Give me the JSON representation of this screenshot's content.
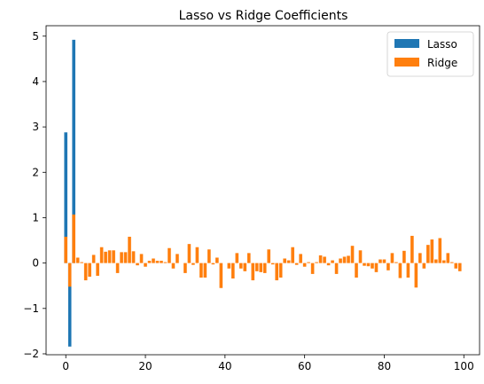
{
  "chart_data": {
    "type": "bar",
    "title": "Lasso vs Ridge Coefficients",
    "xlabel": "",
    "ylabel": "",
    "xlim": [
      -4.95,
      103.95
    ],
    "ylim": [
      -2.02,
      5.23
    ],
    "xticks": [
      "0",
      "20",
      "40",
      "60",
      "80",
      "100"
    ],
    "xtick_values": [
      0,
      20,
      40,
      60,
      80,
      100
    ],
    "yticks": [
      "−2",
      "−1",
      "0",
      "1",
      "2",
      "3",
      "4",
      "5"
    ],
    "ytick_values": [
      -2,
      -1,
      0,
      1,
      2,
      3,
      4,
      5
    ],
    "legend_position": "top-right",
    "grid": false,
    "series": [
      {
        "name": "Lasso",
        "color": "#1f77b4",
        "values": [
          2.88,
          -1.84,
          4.92,
          0,
          0,
          0,
          0,
          0,
          0,
          0,
          0,
          0,
          0,
          0,
          0,
          0,
          0,
          0,
          0,
          0,
          0,
          0,
          0,
          0,
          0,
          0,
          0,
          0,
          0,
          0,
          0,
          0,
          0,
          0,
          0,
          0,
          0,
          0,
          0,
          0,
          0,
          0,
          0,
          0,
          0,
          0,
          0,
          0,
          0,
          0,
          0,
          0,
          0,
          0,
          0,
          0,
          0,
          0,
          0,
          0,
          0,
          0,
          0,
          0,
          0,
          0,
          0,
          0,
          0,
          0,
          0,
          0,
          0,
          0,
          0,
          0,
          0,
          0,
          0,
          0,
          0,
          0,
          0,
          0,
          0,
          0,
          0,
          0,
          0,
          0,
          0,
          0,
          0,
          0,
          0,
          0,
          0,
          0,
          0,
          0
        ]
      },
      {
        "name": "Ridge",
        "color": "#ff7f0e",
        "values": [
          0.58,
          -0.52,
          1.07,
          0.12,
          0.02,
          -0.38,
          -0.3,
          0.18,
          -0.28,
          0.35,
          0.25,
          0.28,
          0.28,
          -0.22,
          0.24,
          0.24,
          0.58,
          0.26,
          -0.05,
          0.2,
          -0.08,
          0.05,
          0.1,
          0.05,
          0.05,
          0.02,
          0.33,
          -0.12,
          0.2,
          0.0,
          -0.22,
          0.42,
          -0.04,
          0.35,
          -0.32,
          -0.32,
          0.3,
          -0.03,
          0.12,
          -0.55,
          0.0,
          -0.12,
          -0.34,
          0.22,
          -0.12,
          -0.18,
          0.22,
          -0.38,
          -0.18,
          -0.2,
          -0.22,
          0.3,
          -0.03,
          -0.38,
          -0.32,
          0.1,
          0.06,
          0.35,
          -0.04,
          0.2,
          -0.08,
          0.02,
          -0.24,
          0.02,
          0.17,
          0.14,
          -0.05,
          0.06,
          -0.24,
          0.1,
          0.14,
          0.16,
          0.38,
          -0.32,
          0.28,
          -0.06,
          -0.07,
          -0.12,
          -0.2,
          0.08,
          0.08,
          -0.16,
          0.22,
          0.02,
          -0.33,
          0.27,
          -0.32,
          0.6,
          -0.54,
          0.22,
          -0.12,
          0.4,
          0.52,
          0.08,
          0.55,
          0.06,
          0.22,
          0.02,
          -0.12,
          -0.18
        ]
      }
    ]
  }
}
